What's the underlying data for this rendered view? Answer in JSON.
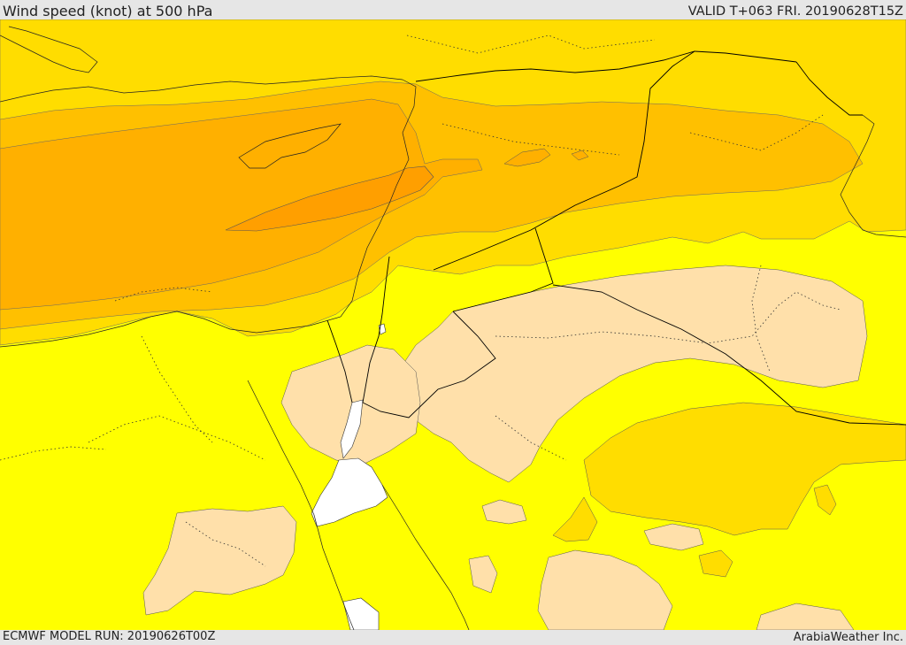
{
  "header": {
    "title": "Wind speed (knot) at 500 hPa",
    "valid_time": "VALID T+063 FRI. 20190628T15Z"
  },
  "footer": {
    "model_run": "ECMWF MODEL RUN: 20190626T00Z",
    "credit": "ArabiaWeather Inc."
  },
  "map": {
    "field": "wind speed at 500 hPa",
    "fill_colors": {
      "very_light": "#ffe0aa",
      "light": "#ffff00",
      "medium_low": "#ffdd00",
      "medium": "#ffc000",
      "medium_high": "#ffb000",
      "high": "#ff9f00",
      "sea_or_missing": "#ffffff"
    },
    "boundary_color": "#000000"
  }
}
